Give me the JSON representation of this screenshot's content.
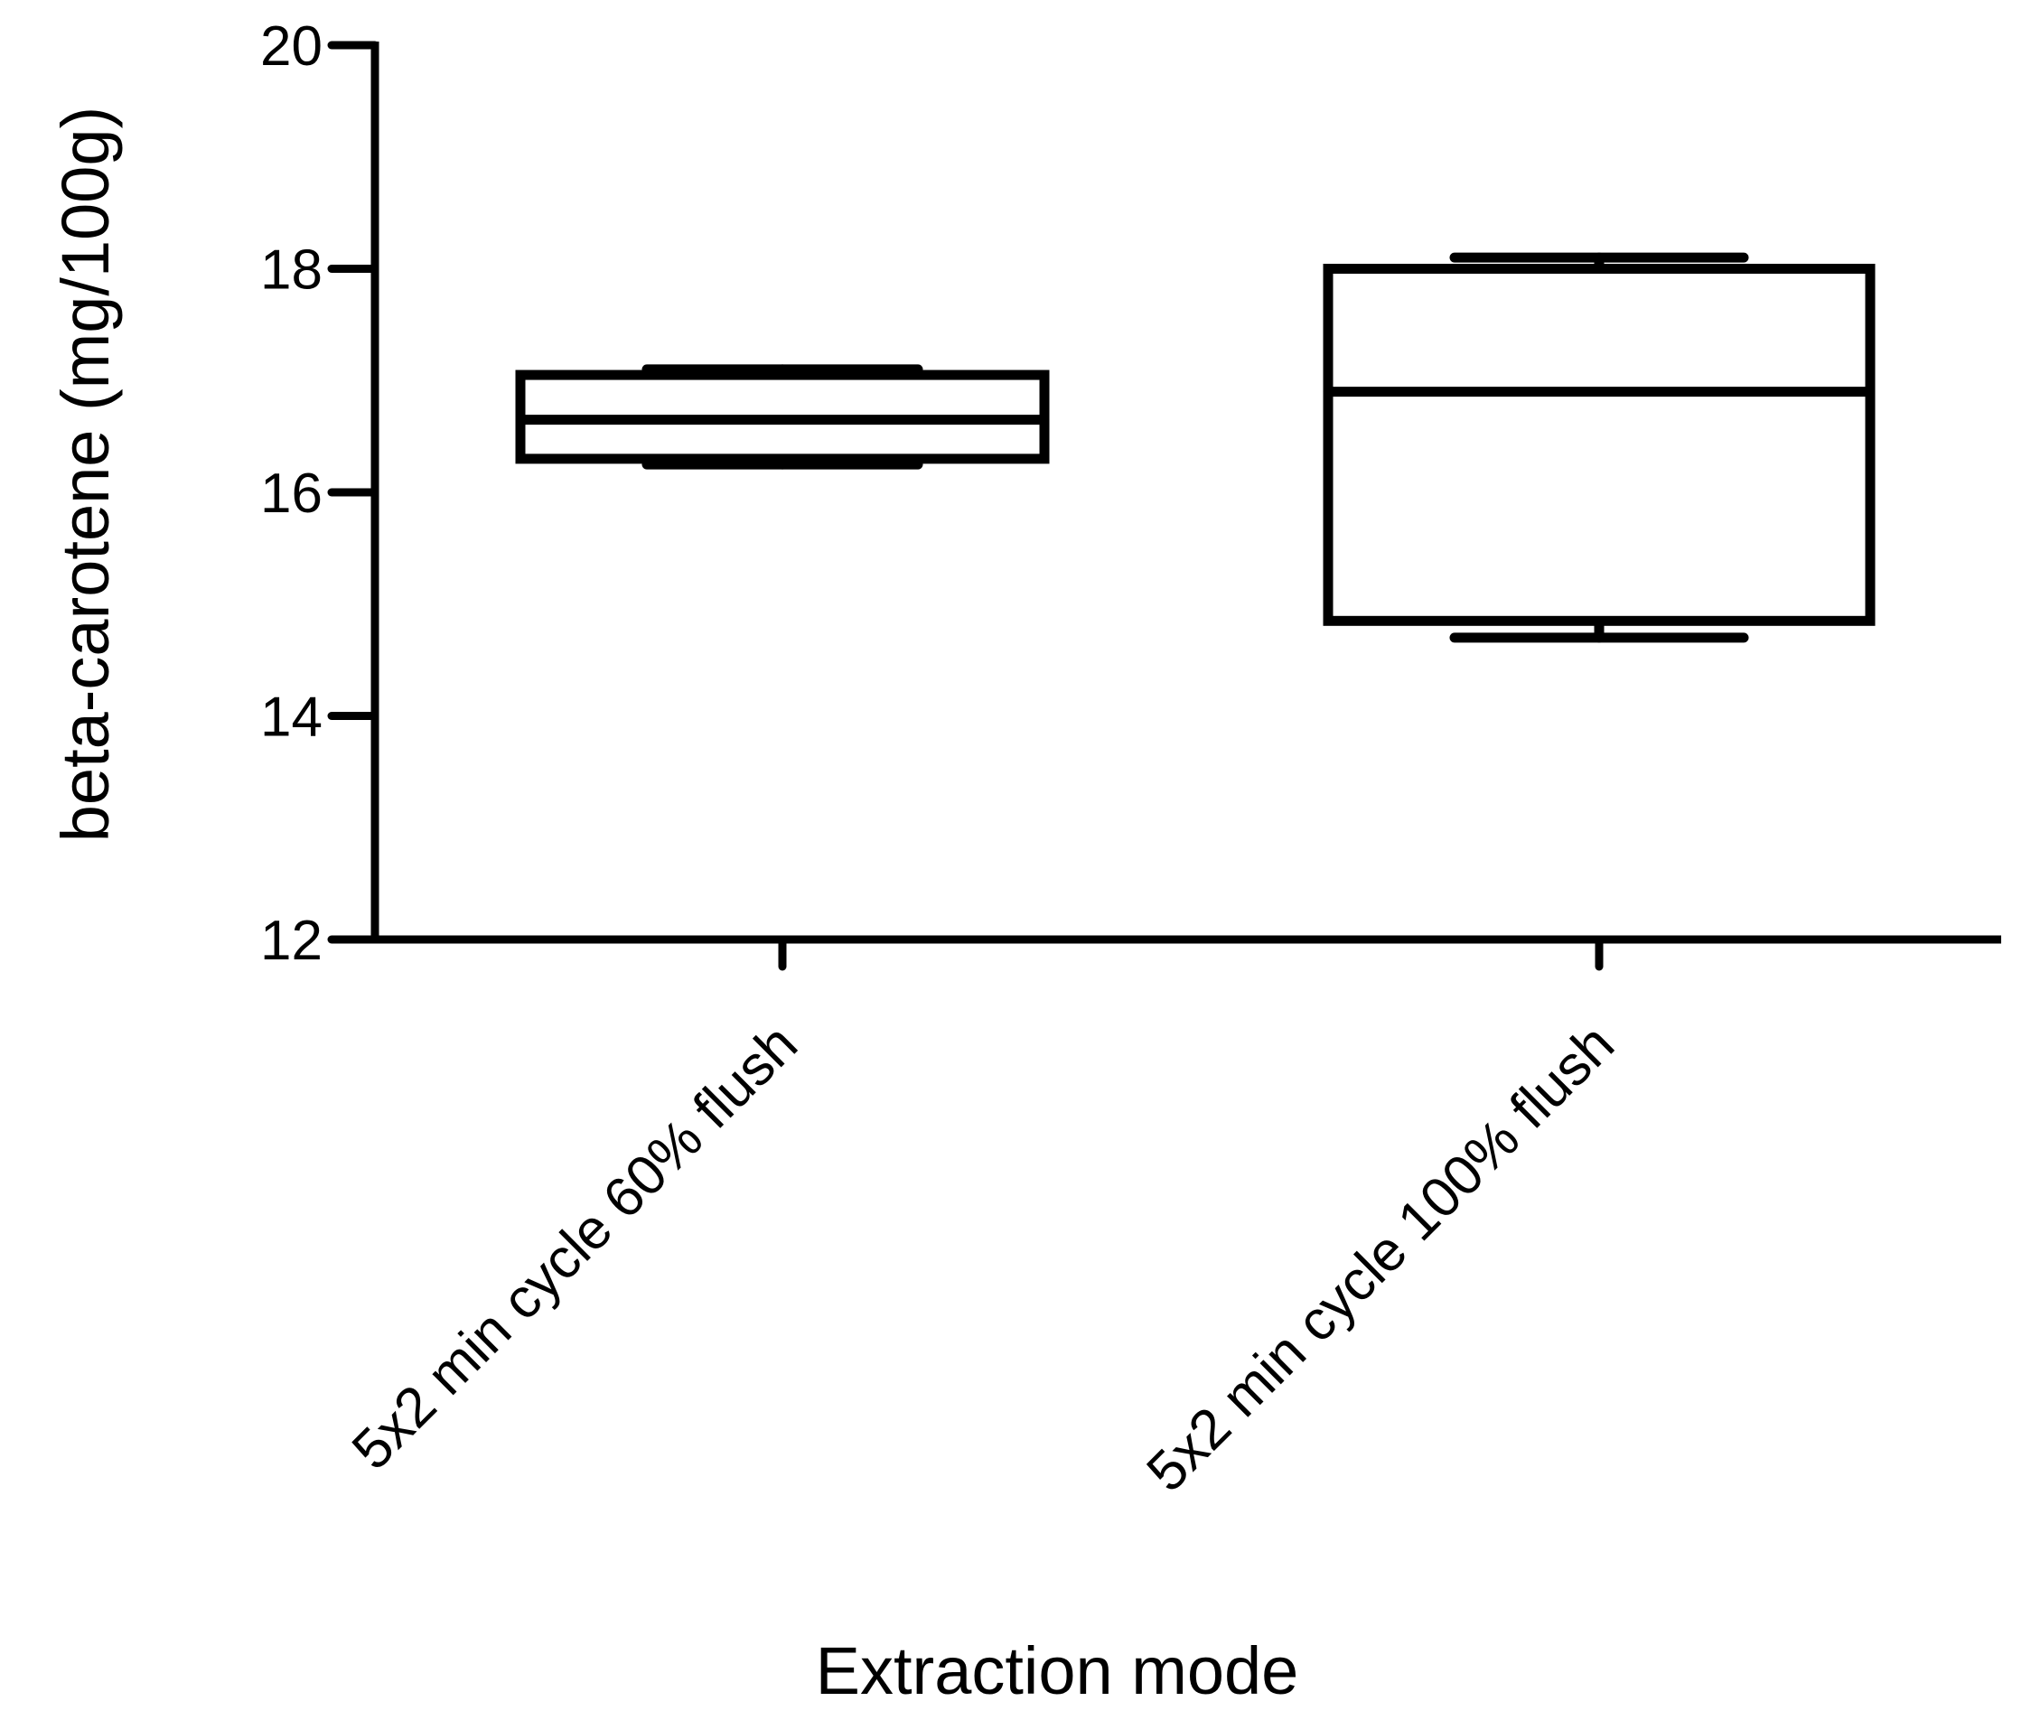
{
  "chart_data": {
    "type": "boxplot",
    "ylabel": "beta-carotene (mg/100g)",
    "xlabel": "Extraction mode",
    "ylim": [
      12,
      20
    ],
    "yticks": [
      "12",
      "14",
      "16",
      "18",
      "20"
    ],
    "categories": [
      "5x2 min cycle 60% flush",
      "5x2 min cycle 100% flush"
    ],
    "boxes": [
      {
        "min": 16.25,
        "q1": 16.3,
        "median": 16.65,
        "q3": 17.05,
        "max": 17.1
      },
      {
        "min": 14.7,
        "q1": 14.85,
        "median": 16.9,
        "q3": 18.0,
        "max": 18.1
      }
    ],
    "grid": false,
    "stroke_color": "#000000"
  }
}
